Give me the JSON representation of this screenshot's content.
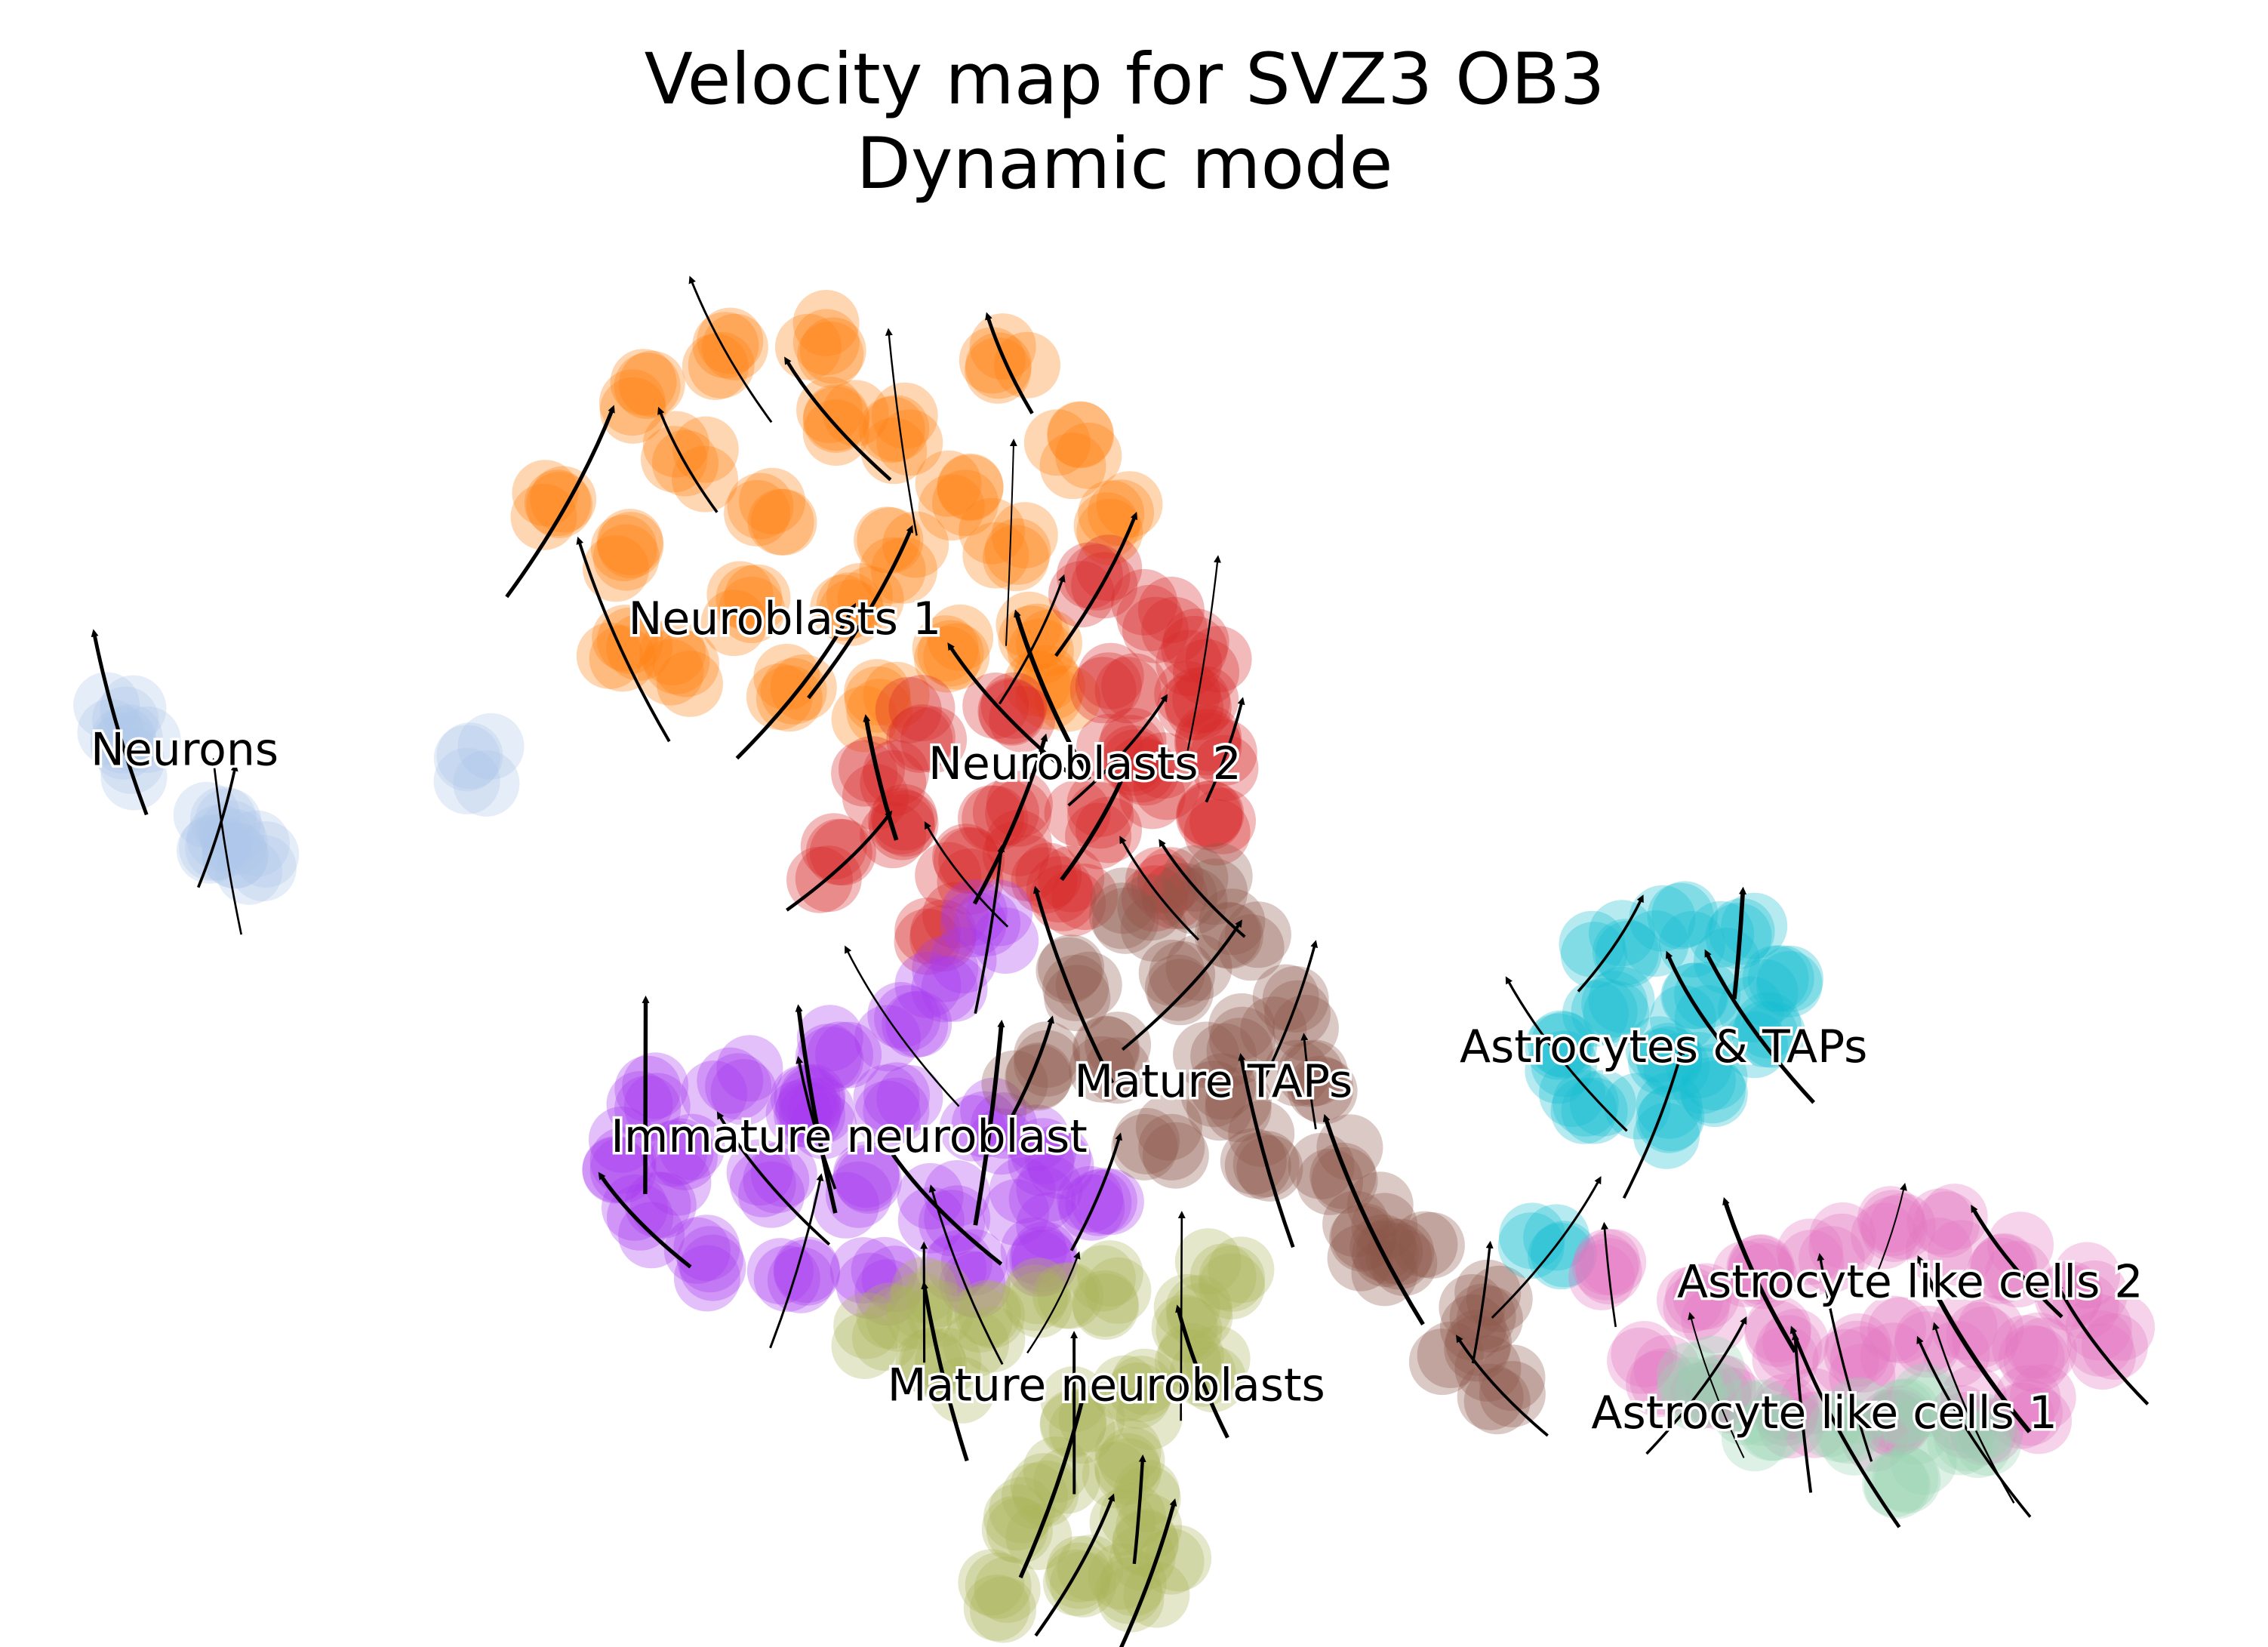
{
  "chart_data": {
    "type": "scatter",
    "title": "Velocity map for SVZ3 OB3",
    "subtitle": "Dynamic mode",
    "xlabel": "",
    "ylabel": "",
    "axes_visible": false,
    "grid": false,
    "legend": "on data",
    "xlim": [
      0,
      100
    ],
    "ylim": [
      0,
      100
    ],
    "clusters": [
      {
        "label": "Neuroblasts 1",
        "color": "#ff7f0e",
        "label_at": [
          34.5,
          70.5
        ],
        "centers": [
          [
            24,
            80
          ],
          [
            27,
            76
          ],
          [
            30,
            83
          ],
          [
            28,
            88
          ],
          [
            32,
            91
          ],
          [
            34,
            79
          ],
          [
            37,
            86
          ],
          [
            36,
            92
          ],
          [
            40,
            85
          ],
          [
            43,
            81
          ],
          [
            45,
            77
          ],
          [
            40,
            76
          ],
          [
            38,
            72
          ],
          [
            33,
            72
          ],
          [
            35,
            67
          ],
          [
            30,
            68
          ],
          [
            27,
            70
          ],
          [
            42,
            70
          ],
          [
            46,
            70
          ],
          [
            48,
            84
          ],
          [
            45,
            90
          ],
          [
            50,
            79
          ],
          [
            47,
            66
          ],
          [
            39,
            65
          ]
        ]
      },
      {
        "label": "Neuroblasts 2",
        "color": "#d62728",
        "label_at": [
          48.5,
          60
        ],
        "centers": [
          [
            49,
            74
          ],
          [
            52,
            72
          ],
          [
            54,
            69
          ],
          [
            50,
            67
          ],
          [
            45,
            65
          ],
          [
            41,
            64
          ],
          [
            39,
            60
          ],
          [
            40,
            56
          ],
          [
            43,
            53
          ],
          [
            46,
            54
          ],
          [
            49,
            57
          ],
          [
            52,
            60
          ],
          [
            55,
            62
          ],
          [
            55,
            57
          ],
          [
            52,
            52
          ],
          [
            48,
            52
          ],
          [
            45,
            57
          ],
          [
            42,
            49
          ],
          [
            50,
            62
          ],
          [
            54,
            66
          ],
          [
            37,
            54
          ]
        ]
      },
      {
        "label": "Neurons",
        "color": "#aec7e8",
        "label_at": [
          6.5,
          61
        ],
        "centers": [
          [
            3.5,
            64
          ],
          [
            4.5,
            61.5
          ],
          [
            8.5,
            55
          ],
          [
            9.5,
            54
          ],
          [
            8,
            56.5
          ],
          [
            20,
            61
          ]
        ]
      },
      {
        "label": "Immature neuroblast",
        "color": "#a83cf0",
        "label_at": [
          37.5,
          33
        ],
        "centers": [
          [
            28,
            37
          ],
          [
            32,
            38
          ],
          [
            36,
            36
          ],
          [
            40,
            36
          ],
          [
            44,
            35
          ],
          [
            47,
            33
          ],
          [
            49,
            30
          ],
          [
            46,
            29
          ],
          [
            42,
            29
          ],
          [
            38,
            30
          ],
          [
            34,
            31
          ],
          [
            30,
            32
          ],
          [
            28,
            28
          ],
          [
            31,
            25
          ],
          [
            35,
            25
          ],
          [
            39,
            24
          ],
          [
            43,
            24
          ],
          [
            46,
            25
          ],
          [
            40,
            42
          ],
          [
            42,
            46
          ],
          [
            44,
            49
          ],
          [
            37,
            40
          ],
          [
            36,
            35
          ],
          [
            27,
            33
          ]
        ]
      },
      {
        "label": "Mature TAPs",
        "color": "#8c564b",
        "label_at": [
          54.5,
          37
        ],
        "centers": [
          [
            46,
            39
          ],
          [
            50,
            40
          ],
          [
            53,
            45
          ],
          [
            56,
            49
          ],
          [
            58,
            43
          ],
          [
            55,
            37
          ],
          [
            57,
            33
          ],
          [
            60,
            32
          ],
          [
            62,
            28
          ],
          [
            64,
            25
          ],
          [
            67,
            22
          ],
          [
            66,
            19
          ],
          [
            68,
            16
          ],
          [
            52,
            34
          ],
          [
            48,
            45
          ],
          [
            51,
            50
          ],
          [
            54,
            52
          ],
          [
            55,
            41
          ],
          [
            59,
            38
          ],
          [
            62,
            25
          ]
        ]
      },
      {
        "label": "Mature neuroblasts",
        "color": "#aab559",
        "label_at": [
          49.5,
          15
        ],
        "centers": [
          [
            41,
            22
          ],
          [
            44,
            20
          ],
          [
            47,
            22
          ],
          [
            50,
            23
          ],
          [
            53,
            21
          ],
          [
            55,
            24
          ],
          [
            54,
            17
          ],
          [
            51,
            15
          ],
          [
            48,
            14
          ],
          [
            50,
            10
          ],
          [
            51,
            7
          ],
          [
            52,
            4
          ],
          [
            48,
            3
          ],
          [
            46,
            6
          ],
          [
            47,
            9
          ],
          [
            45,
            1
          ],
          [
            51,
            1
          ],
          [
            39,
            20
          ],
          [
            42,
            17
          ]
        ]
      },
      {
        "label": "Astrocytes & TAPs",
        "color": "#17becf",
        "label_at": [
          75.5,
          39.5
        ],
        "centers": [
          [
            73,
            48
          ],
          [
            76,
            49
          ],
          [
            79,
            48
          ],
          [
            81,
            45
          ],
          [
            80,
            42
          ],
          [
            78,
            38
          ],
          [
            75,
            35
          ],
          [
            72,
            36
          ],
          [
            71,
            40
          ],
          [
            73,
            43
          ],
          [
            77,
            44
          ],
          [
            76,
            40
          ],
          [
            70,
            26
          ]
        ]
      },
      {
        "label": "Astrocyte like cells 2",
        "color": "#e377c2",
        "label_at": [
          87,
          22.5
        ],
        "centers": [
          [
            73,
            24
          ],
          [
            77,
            22
          ],
          [
            80,
            24
          ],
          [
            83,
            26
          ],
          [
            86,
            27
          ],
          [
            89,
            27
          ],
          [
            92,
            25
          ],
          [
            95,
            23
          ],
          [
            96,
            19
          ],
          [
            93,
            18
          ],
          [
            90,
            19
          ],
          [
            87,
            19
          ],
          [
            84,
            18
          ],
          [
            81,
            19
          ],
          [
            78,
            16
          ],
          [
            75,
            17
          ],
          [
            82,
            14
          ],
          [
            86,
            13
          ],
          [
            90,
            14
          ],
          [
            93,
            14
          ]
        ]
      },
      {
        "label": "Astrocyte like cells 1",
        "color": "#98d4b2",
        "label_at": [
          83,
          13
        ],
        "centers": [
          [
            77,
            16
          ],
          [
            80,
            13
          ],
          [
            84,
            13
          ],
          [
            87,
            14
          ],
          [
            90,
            13
          ],
          [
            87,
            10
          ]
        ]
      }
    ],
    "velocity_streams": "black streamlines with arrowheads overlaid on clusters"
  }
}
